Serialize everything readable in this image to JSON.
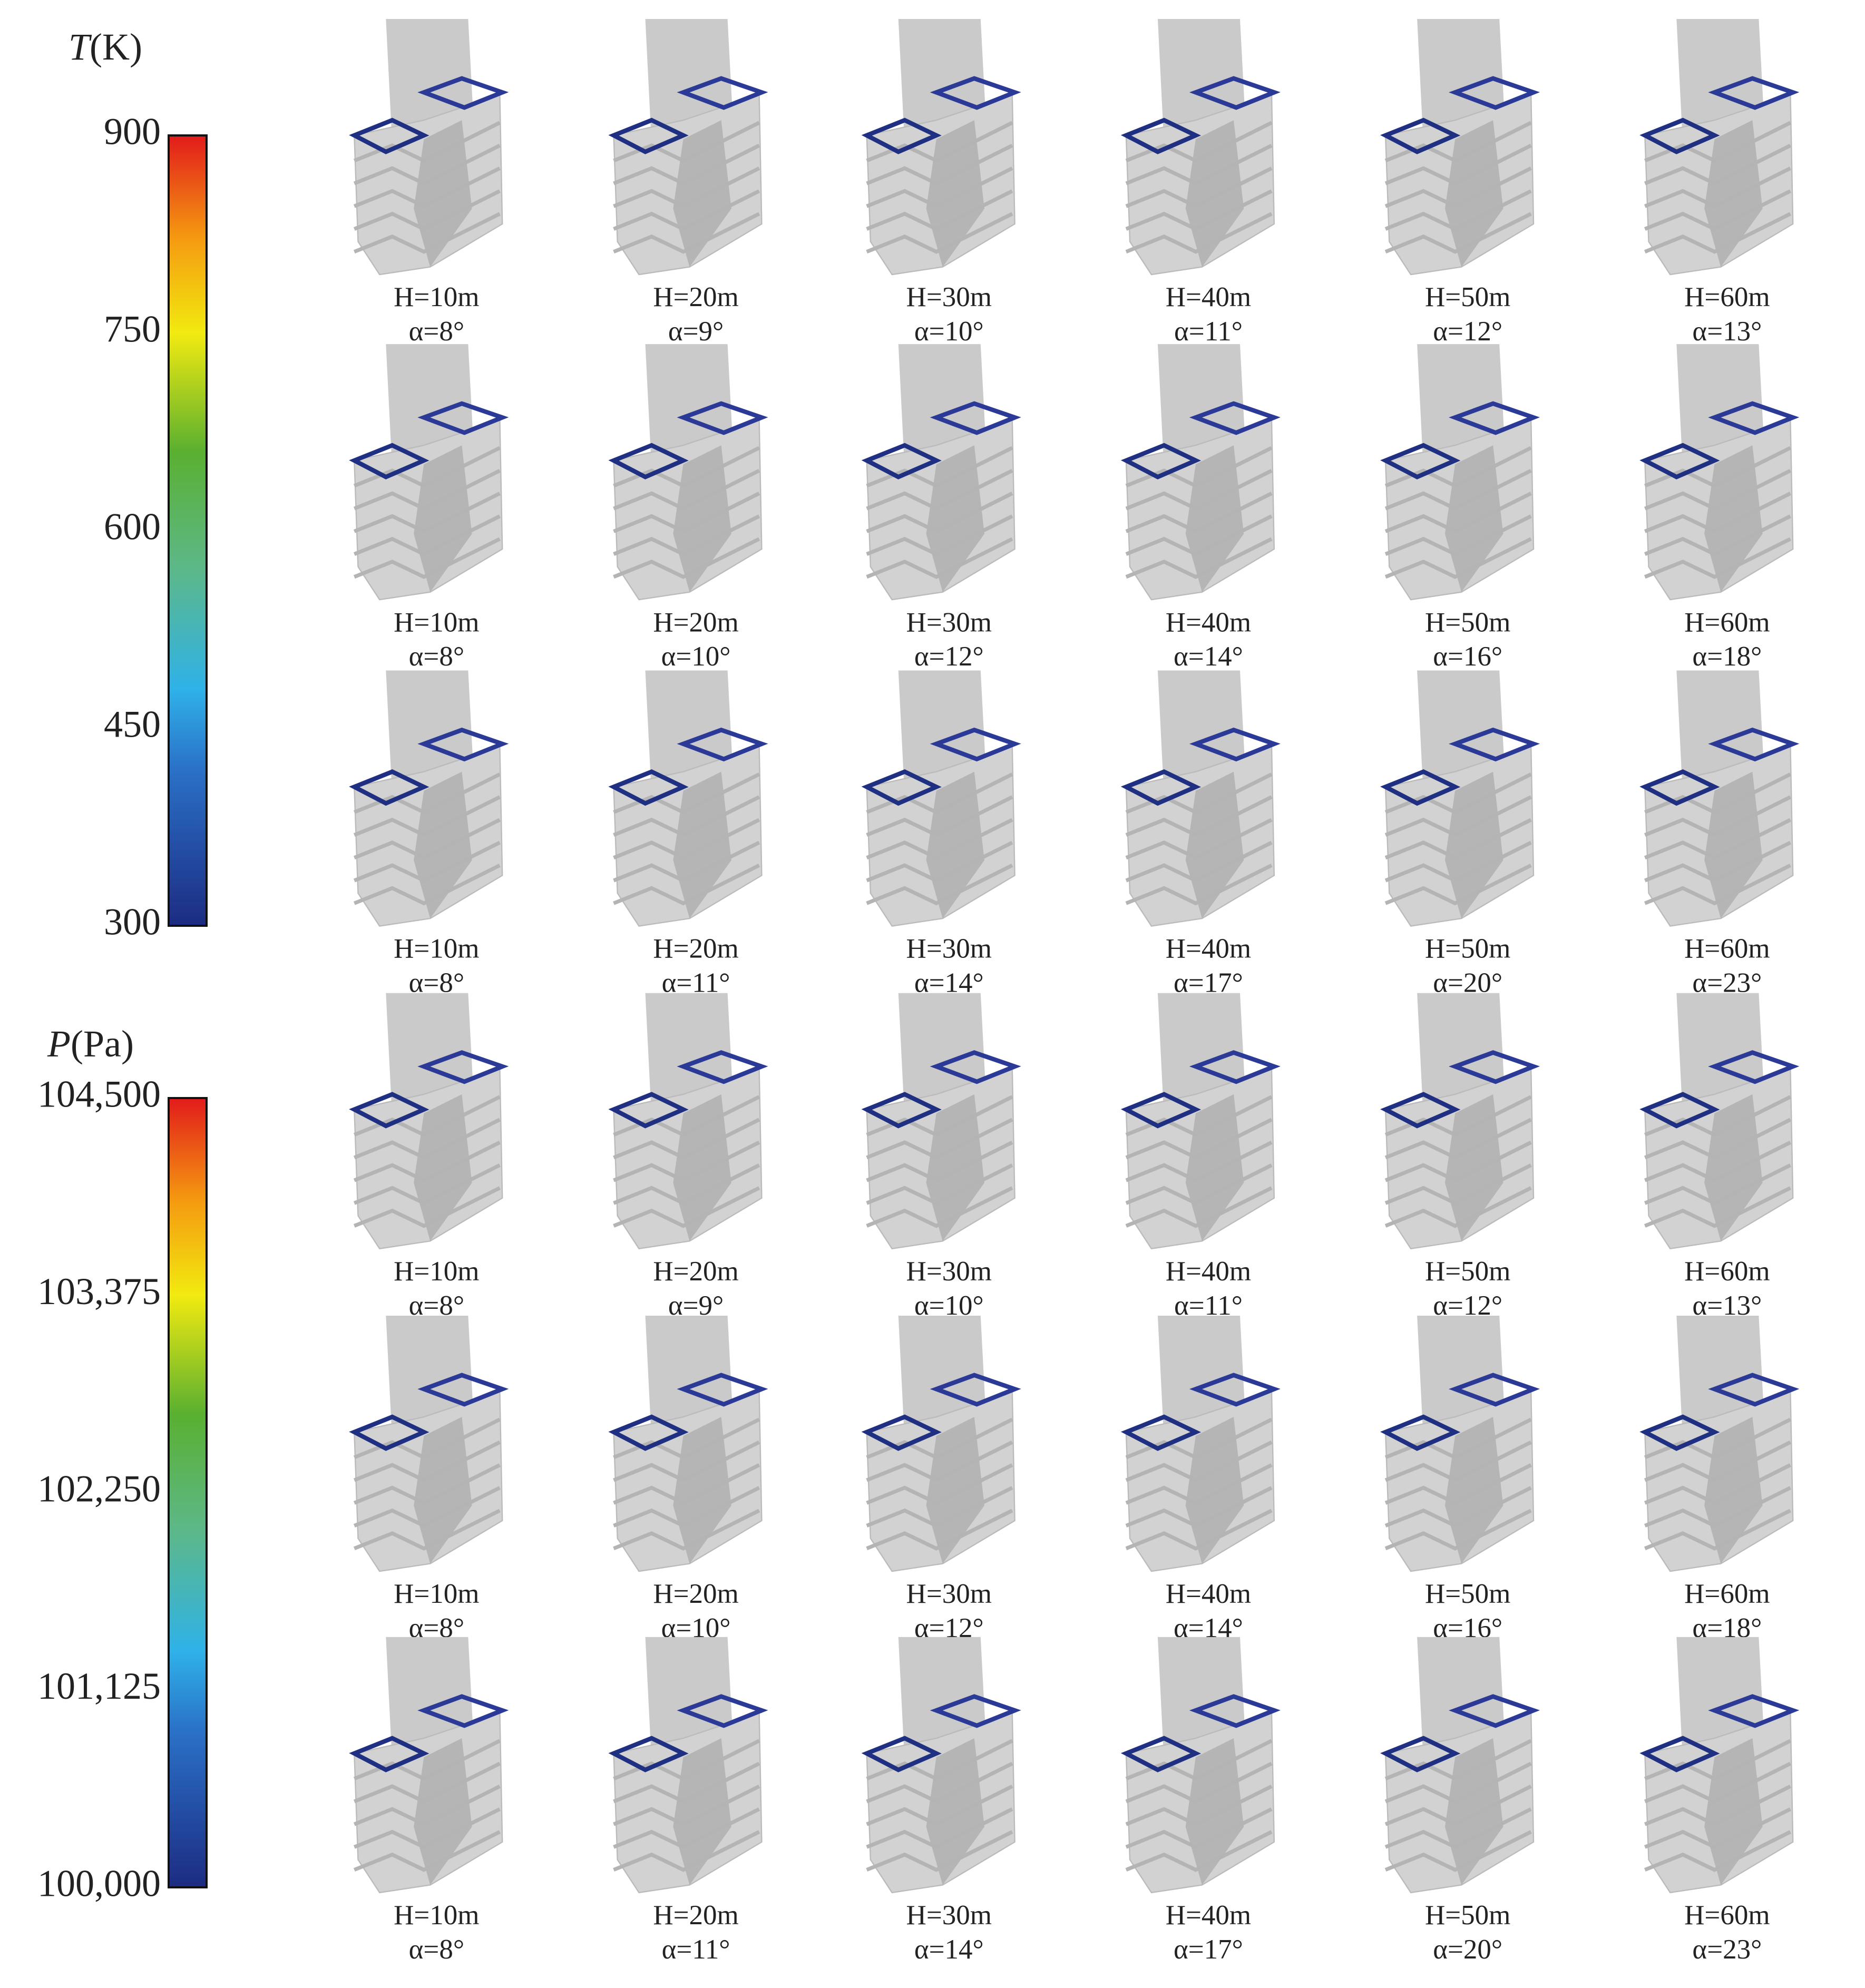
{
  "colorbars": [
    {
      "symbol": "T",
      "unit": "(K)",
      "lim": [
        300,
        900
      ],
      "ticks": [
        900,
        750,
        600,
        450,
        300
      ]
    },
    {
      "symbol": "P",
      "unit": "(Pa)",
      "lim": [
        100000,
        104500
      ],
      "ticks": [
        {
          "value": 104500,
          "label": "104,500"
        },
        {
          "value": 103375,
          "label": "103,375"
        },
        {
          "value": 102250,
          "label": "102,250"
        },
        {
          "value": 101125,
          "label": "101,125"
        },
        {
          "value": 100000,
          "label": "100,000"
        }
      ]
    }
  ],
  "panels": [
    [
      {
        "h": "H=10m",
        "alpha": "α=8°"
      },
      {
        "h": "H=20m",
        "alpha": "α=9°"
      },
      {
        "h": "H=30m",
        "alpha": "α=10°"
      },
      {
        "h": "H=40m",
        "alpha": "α=11°"
      },
      {
        "h": "H=50m",
        "alpha": "α=12°"
      },
      {
        "h": "H=60m",
        "alpha": "α=13°"
      }
    ],
    [
      {
        "h": "H=10m",
        "alpha": "α=8°"
      },
      {
        "h": "H=20m",
        "alpha": "α=10°"
      },
      {
        "h": "H=30m",
        "alpha": "α=12°"
      },
      {
        "h": "H=40m",
        "alpha": "α=14°"
      },
      {
        "h": "H=50m",
        "alpha": "α=16°"
      },
      {
        "h": "H=60m",
        "alpha": "α=18°"
      }
    ],
    [
      {
        "h": "H=10m",
        "alpha": "α=8°"
      },
      {
        "h": "H=20m",
        "alpha": "α=11°"
      },
      {
        "h": "H=30m",
        "alpha": "α=14°"
      },
      {
        "h": "H=40m",
        "alpha": "α=17°"
      },
      {
        "h": "H=50m",
        "alpha": "α=20°"
      },
      {
        "h": "H=60m",
        "alpha": "α=23°"
      }
    ],
    [
      {
        "h": "H=10m",
        "alpha": "α=8°"
      },
      {
        "h": "H=20m",
        "alpha": "α=9°"
      },
      {
        "h": "H=30m",
        "alpha": "α=10°"
      },
      {
        "h": "H=40m",
        "alpha": "α=11°"
      },
      {
        "h": "H=50m",
        "alpha": "α=12°"
      },
      {
        "h": "H=60m",
        "alpha": "α=13°"
      }
    ],
    [
      {
        "h": "H=10m",
        "alpha": "α=8°"
      },
      {
        "h": "H=20m",
        "alpha": "α=10°"
      },
      {
        "h": "H=30m",
        "alpha": "α=12°"
      },
      {
        "h": "H=40m",
        "alpha": "α=14°"
      },
      {
        "h": "H=50m",
        "alpha": "α=16°"
      },
      {
        "h": "H=60m",
        "alpha": "α=18°"
      }
    ],
    [
      {
        "h": "H=10m",
        "alpha": "α=8°"
      },
      {
        "h": "H=20m",
        "alpha": "α=11°"
      },
      {
        "h": "H=30m",
        "alpha": "α=14°"
      },
      {
        "h": "H=40m",
        "alpha": "α=17°"
      },
      {
        "h": "H=50m",
        "alpha": "α=20°"
      },
      {
        "h": "H=60m",
        "alpha": "α=23°"
      }
    ]
  ]
}
